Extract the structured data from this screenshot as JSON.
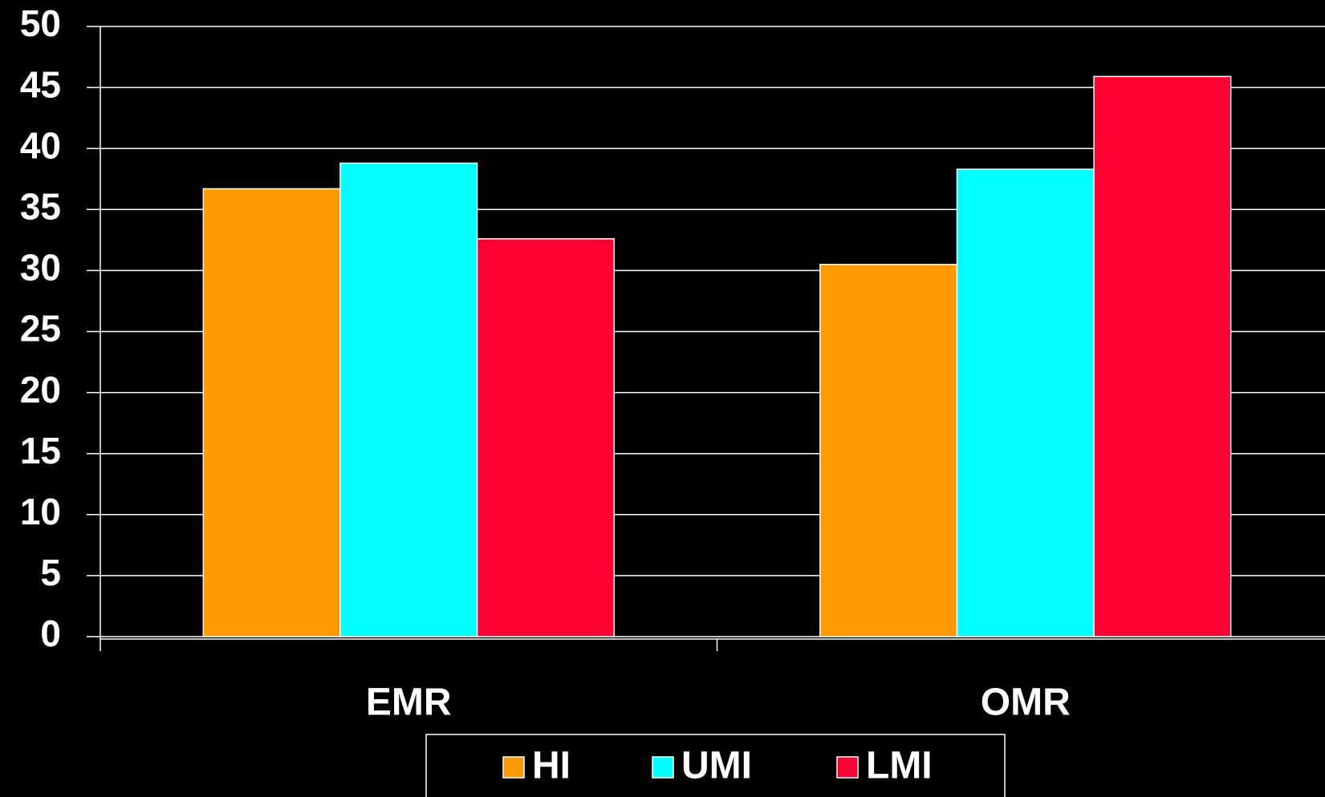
{
  "chart_data": {
    "type": "bar",
    "categories": [
      "EMR",
      "OMR"
    ],
    "series": [
      {
        "name": "HI",
        "color": "#ff9900",
        "values": [
          36.7,
          30.5
        ]
      },
      {
        "name": "UMI",
        "color": "#00ffff",
        "values": [
          38.8,
          38.3
        ]
      },
      {
        "name": "LMI",
        "color": "#ff0033",
        "values": [
          32.6,
          45.9
        ]
      }
    ],
    "ylim": [
      0,
      50
    ],
    "yticks": [
      0,
      5,
      10,
      15,
      20,
      25,
      30,
      35,
      40,
      45,
      50
    ],
    "grid": true,
    "legend": "bottom"
  }
}
